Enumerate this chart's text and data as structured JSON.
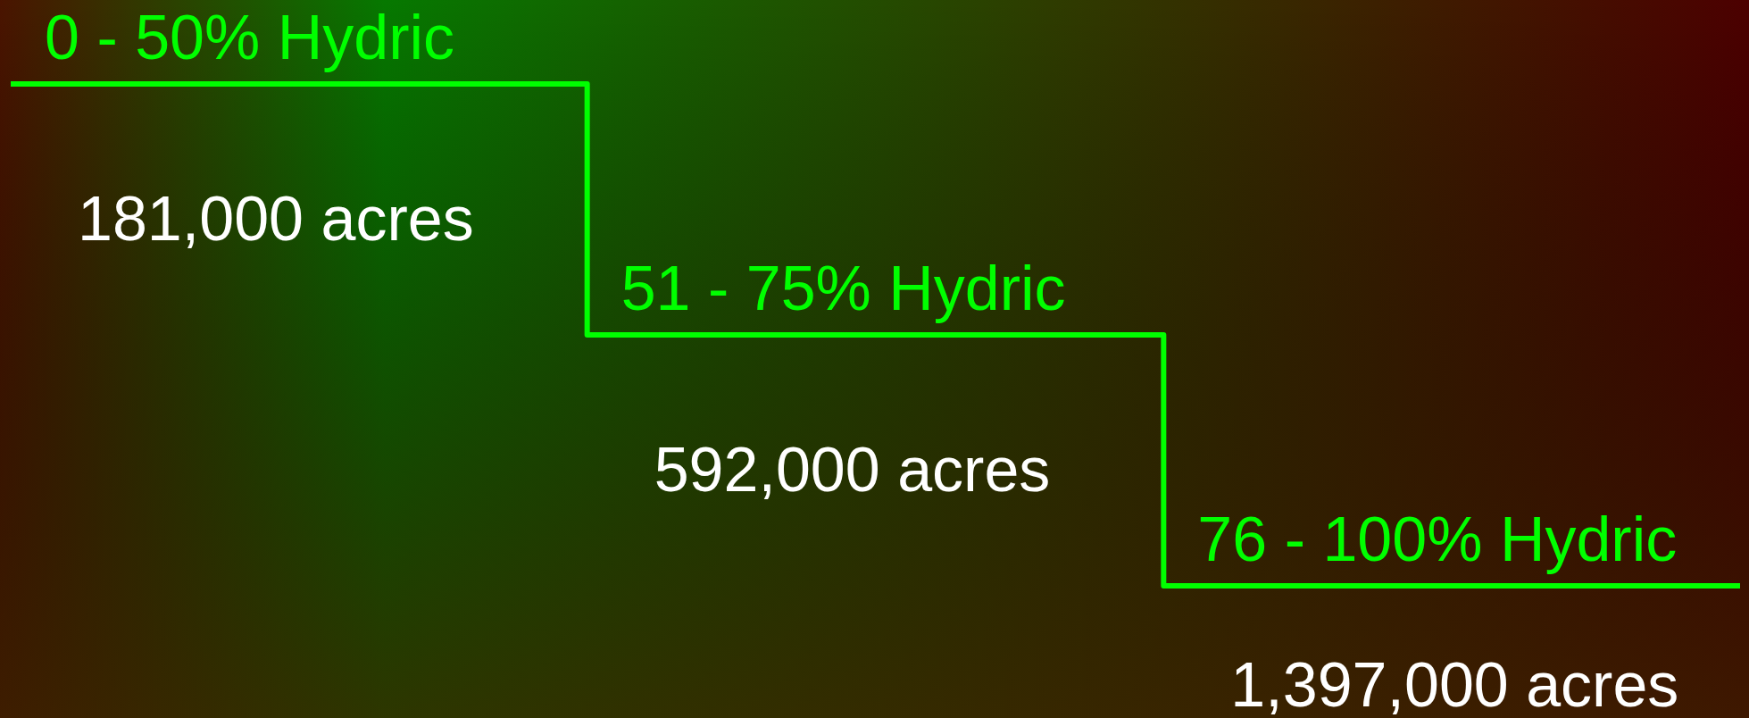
{
  "chart_data": {
    "type": "other",
    "categories": [
      "0 - 50% Hydric",
      "51 - 75% Hydric",
      "76 - 100% Hydric"
    ],
    "values": [
      181000,
      592000,
      1397000
    ],
    "value_labels": [
      "181,000 acres",
      "592,000 acres",
      "1,397,000 acres"
    ],
    "color": "#00ff00"
  }
}
